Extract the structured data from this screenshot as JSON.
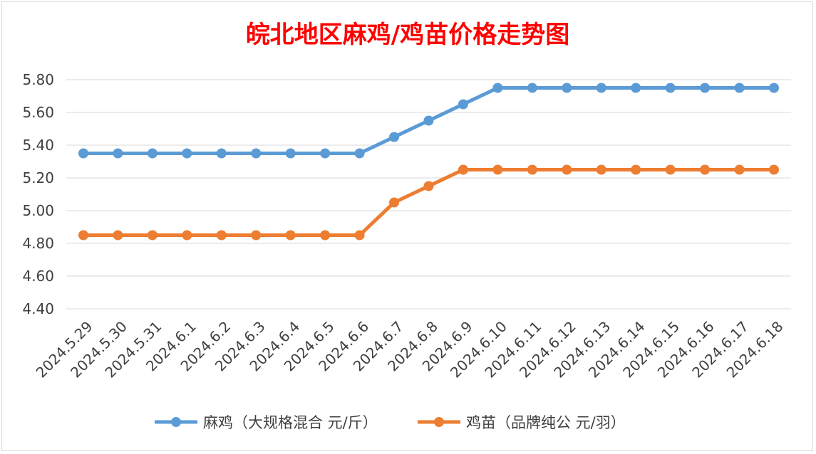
{
  "chart_data": {
    "type": "line",
    "title": "皖北地区麻鸡/鸡苗价格走势图",
    "title_color": "#ff0000",
    "categories": [
      "2024.5.29",
      "2024.5.30",
      "2024.5.31",
      "2024.6.1",
      "2024.6.2",
      "2024.6.3",
      "2024.6.4",
      "2024.6.5",
      "2024.6.6",
      "2024.6.7",
      "2024.6.8",
      "2024.6.9",
      "2024.6.10",
      "2024.6.11",
      "2024.6.12",
      "2024.6.13",
      "2024.6.14",
      "2024.6.15",
      "2024.6.16",
      "2024.6.17",
      "2024.6.18"
    ],
    "series": [
      {
        "name": "麻鸡（大规格混合 元/斤）",
        "color": "#5b9bd5",
        "values": [
          5.35,
          5.35,
          5.35,
          5.35,
          5.35,
          5.35,
          5.35,
          5.35,
          5.35,
          5.45,
          5.55,
          5.65,
          5.75,
          5.75,
          5.75,
          5.75,
          5.75,
          5.75,
          5.75,
          5.75,
          5.75
        ]
      },
      {
        "name": "鸡苗（品牌纯公 元/羽）",
        "color": "#ed7d31",
        "values": [
          4.85,
          4.85,
          4.85,
          4.85,
          4.85,
          4.85,
          4.85,
          4.85,
          4.85,
          5.05,
          5.15,
          5.25,
          5.25,
          5.25,
          5.25,
          5.25,
          5.25,
          5.25,
          5.25,
          5.25,
          5.25
        ]
      }
    ],
    "yticks": [
      "4.40",
      "4.60",
      "4.80",
      "5.00",
      "5.20",
      "5.40",
      "5.60",
      "5.80"
    ],
    "ylim": [
      4.4,
      5.8
    ],
    "grid": true,
    "legend_position": "bottom"
  }
}
